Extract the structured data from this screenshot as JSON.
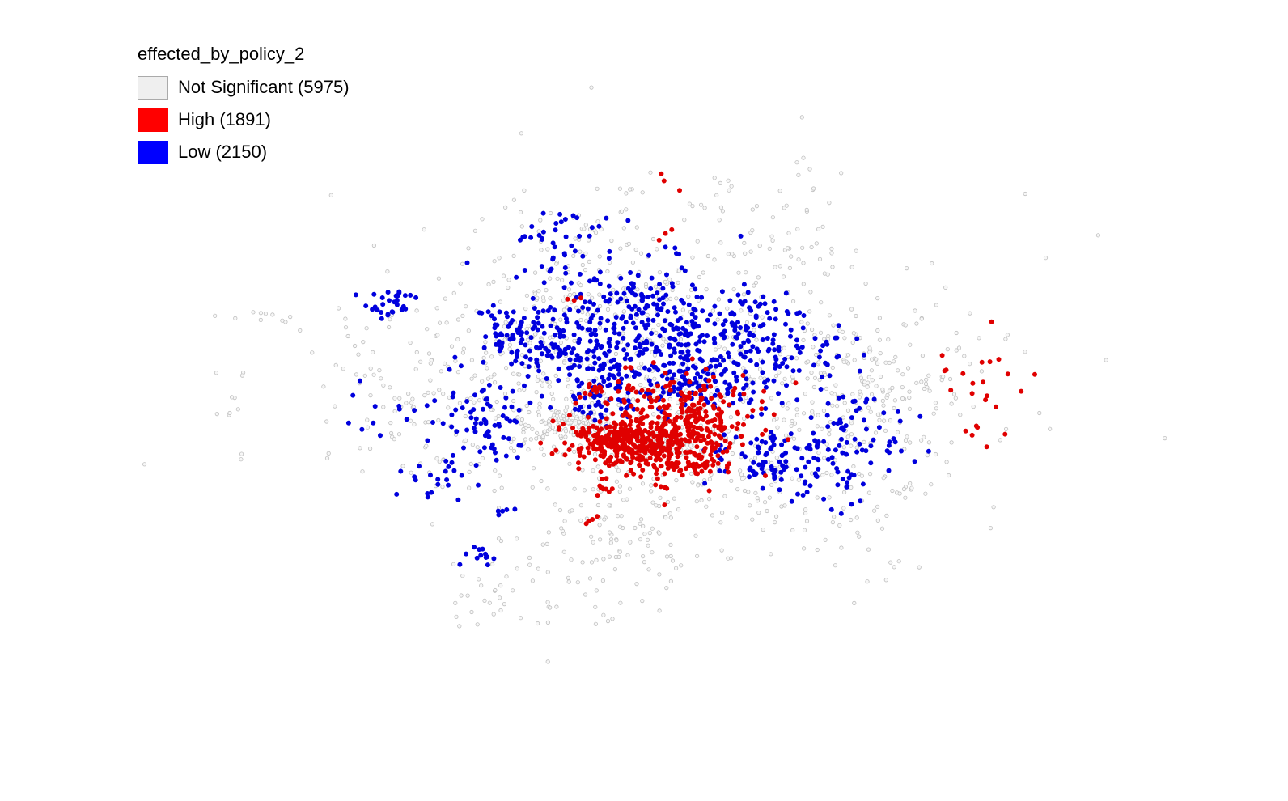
{
  "legend": {
    "title": "effected_by_policy_2",
    "items": [
      {
        "label": "Not Significant (5975)",
        "color": "#efefef",
        "stroke": "#aaaaaa"
      },
      {
        "label": "High (1891)",
        "color": "#ff0000",
        "stroke": "#ff0000"
      },
      {
        "label": "Low (2150)",
        "color": "#0000ff",
        "stroke": "#0000ff"
      }
    ]
  },
  "map": {
    "point_colors": {
      "not_significant": "#bfbfbf",
      "high": "#e00000",
      "low": "#0000dd"
    }
  }
}
